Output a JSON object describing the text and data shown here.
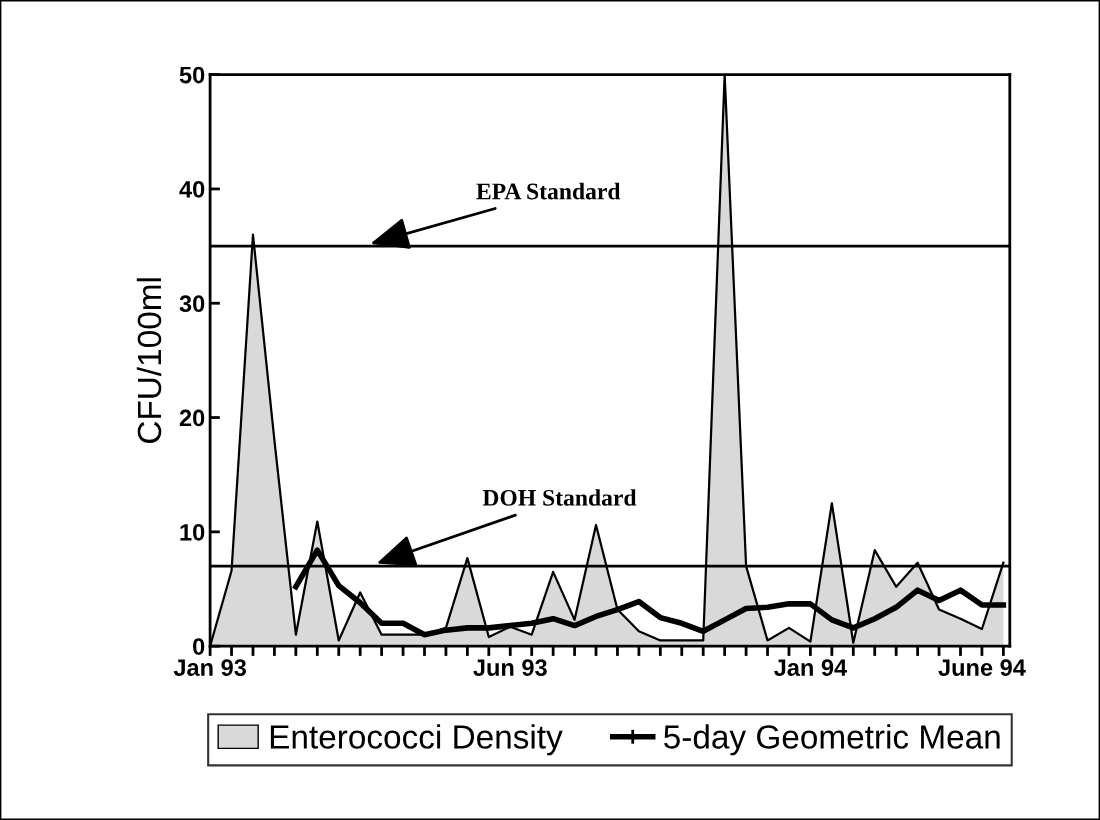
{
  "chart_data": {
    "type": "area",
    "ylabel": "CFU/100ml",
    "categories": [
      "Jan 93",
      null,
      null,
      null,
      null,
      null,
      null,
      null,
      null,
      null,
      null,
      null,
      null,
      null,
      "Jun 93",
      null,
      null,
      null,
      null,
      null,
      null,
      null,
      null,
      null,
      null,
      null,
      null,
      null,
      "Jan 94",
      null,
      null,
      null,
      null,
      null,
      null,
      null,
      "June 94",
      null
    ],
    "series": [
      {
        "name": "Enterococci Density",
        "type": "area",
        "color": "#d9d9d9",
        "values": [
          0,
          6.6,
          36,
          18,
          1,
          10.9,
          0.5,
          4.7,
          1,
          1,
          1,
          1.6,
          7.7,
          0.8,
          1.7,
          1,
          6.5,
          2.3,
          10.6,
          3.2,
          1.3,
          0.5,
          0.5,
          0.5,
          50,
          7,
          0.5,
          1.6,
          0.4,
          12.5,
          0.3,
          8.4,
          5.2,
          7.3,
          3.2,
          2.4,
          1.5,
          7.3
        ]
      },
      {
        "name": "5-day Geometric Mean",
        "type": "line",
        "color": "#000000",
        "values": [
          null,
          null,
          null,
          null,
          5.2,
          8.4,
          5.3,
          3.8,
          2,
          2,
          1,
          1.4,
          1.6,
          1.6,
          1.8,
          2,
          2.4,
          1.8,
          2.6,
          3.2,
          3.9,
          2.5,
          2,
          1.3,
          2.3,
          3.3,
          3.4,
          3.7,
          3.7,
          2.3,
          1.6,
          2.4,
          3.4,
          4.9,
          4,
          4.9,
          3.6,
          3.6
        ]
      }
    ],
    "ylim": [
      0,
      50
    ],
    "yticks": [
      0,
      10,
      20,
      30,
      40,
      50
    ],
    "ref_lines": [
      {
        "axis": "y",
        "value": 35,
        "label": "EPA Standard",
        "color": "#000000"
      },
      {
        "axis": "y",
        "value": 7,
        "label": "DOH Standard",
        "color": "#000000"
      }
    ],
    "grid": false,
    "legend": "bottom"
  }
}
